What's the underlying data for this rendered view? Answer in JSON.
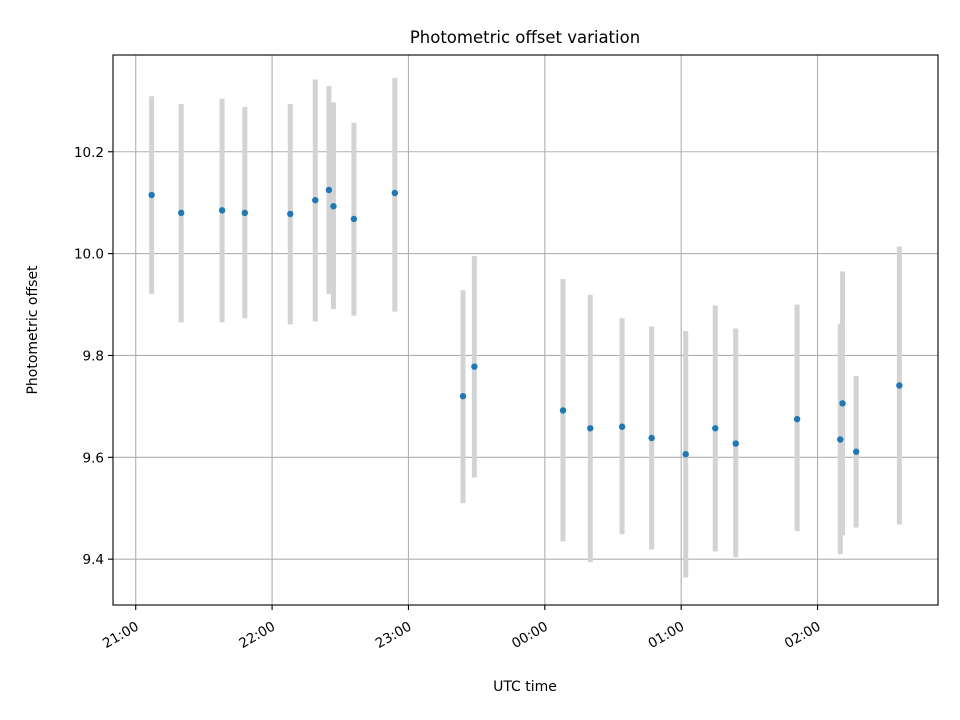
{
  "chart_data": {
    "type": "scatter",
    "title": "Photometric offset variation",
    "xlabel": "UTC time",
    "ylabel": "Photometric offset",
    "x_axis_kind": "time",
    "xlim": [
      "20:50",
      "02:53"
    ],
    "ylim": [
      9.31,
      10.39
    ],
    "xticks": [
      "21:00",
      "22:00",
      "23:00",
      "00:00",
      "01:00",
      "02:00"
    ],
    "yticks": [
      "9.4",
      "9.6",
      "9.8",
      "10.0",
      "10.2"
    ],
    "grid": true,
    "legend": "none",
    "colors": {
      "points": "#1f77b4",
      "errorbars": "#d3d3d3",
      "grid": "#b0b0b0"
    },
    "series": [
      {
        "x": [
          "21:07",
          "21:20",
          "21:38",
          "21:48",
          "22:08",
          "22:19",
          "22:25",
          "22:27",
          "22:36",
          "22:54",
          "23:24",
          "23:29",
          "00:08",
          "00:20",
          "00:34",
          "00:47",
          "01:02",
          "01:15",
          "01:24",
          "01:51",
          "02:10",
          "02:11",
          "02:17",
          "02:36"
        ],
        "y": [
          10.115,
          10.08,
          10.085,
          10.08,
          10.078,
          10.105,
          10.125,
          10.093,
          10.068,
          10.119,
          9.72,
          9.778,
          9.692,
          9.657,
          9.66,
          9.638,
          9.606,
          9.657,
          9.627,
          9.675,
          9.635,
          9.706,
          9.611,
          9.741
        ],
        "lo": [
          9.921,
          9.865,
          9.865,
          9.873,
          9.861,
          9.867,
          9.921,
          9.891,
          9.878,
          9.886,
          9.51,
          9.56,
          9.435,
          9.394,
          9.449,
          9.419,
          9.364,
          9.415,
          9.404,
          9.455,
          9.41,
          9.447,
          9.462,
          9.468
        ],
        "hi": [
          10.309,
          10.294,
          10.304,
          10.288,
          10.294,
          10.342,
          10.329,
          10.297,
          10.257,
          10.345,
          9.928,
          9.995,
          9.95,
          9.919,
          9.873,
          9.857,
          9.848,
          9.898,
          9.853,
          9.9,
          9.862,
          9.965,
          9.76,
          10.014
        ]
      }
    ]
  }
}
